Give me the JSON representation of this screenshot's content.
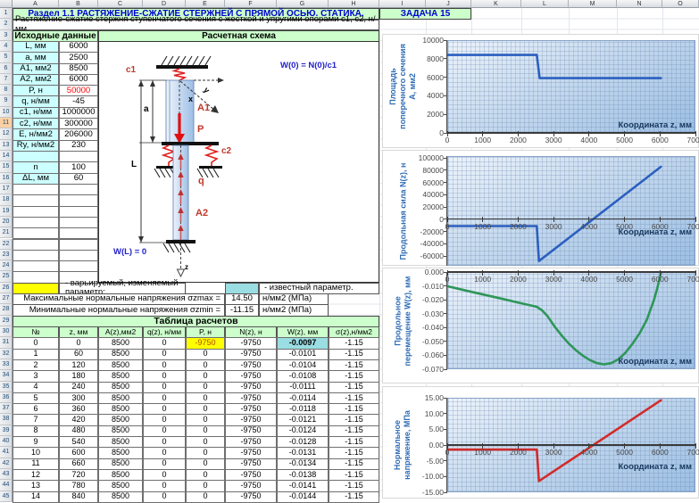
{
  "sheet": {
    "columns": [
      "A",
      "B",
      "C",
      "D",
      "E",
      "F",
      "G",
      "H",
      "I",
      "J",
      "K",
      "L",
      "M",
      "N",
      "O"
    ],
    "visible_rows": 45,
    "highlighted_row": 11
  },
  "title_row": {
    "section_title": "Раздел 1.1 РАСТЯЖЕНИЕ-СЖАТИЕ СТЕРЖНЕЙ С ПРЯМОЙ ОСЬЮ. СТАТИКА.",
    "task_label": "ЗАДАЧА 15"
  },
  "subtitle": "Растяжение-сжатие стержня ступенчатого сечения с жесткой и упругими опорами с1, с2, н/мм",
  "input_table": {
    "header": "Исходные данные",
    "rows": [
      {
        "label": "L, мм",
        "value": "6000"
      },
      {
        "label": "a, мм",
        "value": "2500"
      },
      {
        "label": "A1, мм2",
        "value": "8500"
      },
      {
        "label": "A2, мм2",
        "value": "6000"
      },
      {
        "label": "P, н",
        "value": "50000",
        "red": true
      },
      {
        "label": "q, н/мм",
        "value": "-45"
      },
      {
        "label": "c1, н/мм",
        "value": "1000000"
      },
      {
        "label": "c2, н/мм",
        "value": "300000"
      },
      {
        "label": "E, н/мм2",
        "value": "206000"
      },
      {
        "label": "Ry, н/мм2",
        "value": "230"
      },
      {
        "label": "",
        "value": ""
      },
      {
        "label": "n",
        "value": "100"
      },
      {
        "label": "ΔL, мм",
        "value": "60"
      }
    ]
  },
  "schema": {
    "header": "Расчетная схема",
    "labels": {
      "c1": "c1",
      "c2": "c2",
      "A1": "A1",
      "A2": "A2",
      "P": "P",
      "q": "q",
      "a": "a",
      "L": "L",
      "x": "x",
      "y": "y",
      "z": "z",
      "w0": "W(0) = N(0)/c1",
      "wl": "W(L) = 0"
    }
  },
  "legend": {
    "varied_text": "- варьируемый, изменяемый параметр;",
    "known_text": "- известный параметр."
  },
  "results": [
    {
      "text": "Максимальные нормальные напряжения σzmax =",
      "value": "14.50",
      "unit": "н/мм2 (МПа)"
    },
    {
      "text": "Минимальные нормальные напряжения σzmin =",
      "value": "-11.15",
      "unit": "н/мм2 (МПа)"
    }
  ],
  "calc_table": {
    "title": "Таблица расчетов",
    "headers": [
      "№",
      "z, мм",
      "A(z),мм2",
      "q(z), н/мм",
      "P, н",
      "N(z), н",
      "W(z), мм",
      "σ(z),н/мм2"
    ],
    "rows": [
      [
        "0",
        "0",
        "8500",
        "0",
        "-9750",
        "-9750",
        "-0.0097",
        "-1.15"
      ],
      [
        "1",
        "60",
        "8500",
        "0",
        "0",
        "-9750",
        "-0.0101",
        "-1.15"
      ],
      [
        "2",
        "120",
        "8500",
        "0",
        "0",
        "-9750",
        "-0.0104",
        "-1.15"
      ],
      [
        "3",
        "180",
        "8500",
        "0",
        "0",
        "-9750",
        "-0.0108",
        "-1.15"
      ],
      [
        "4",
        "240",
        "8500",
        "0",
        "0",
        "-9750",
        "-0.0111",
        "-1.15"
      ],
      [
        "5",
        "300",
        "8500",
        "0",
        "0",
        "-9750",
        "-0.0114",
        "-1.15"
      ],
      [
        "6",
        "360",
        "8500",
        "0",
        "0",
        "-9750",
        "-0.0118",
        "-1.15"
      ],
      [
        "7",
        "420",
        "8500",
        "0",
        "0",
        "-9750",
        "-0.0121",
        "-1.15"
      ],
      [
        "8",
        "480",
        "8500",
        "0",
        "0",
        "-9750",
        "-0.0124",
        "-1.15"
      ],
      [
        "9",
        "540",
        "8500",
        "0",
        "0",
        "-9750",
        "-0.0128",
        "-1.15"
      ],
      [
        "10",
        "600",
        "8500",
        "0",
        "0",
        "-9750",
        "-0.0131",
        "-1.15"
      ],
      [
        "11",
        "660",
        "8500",
        "0",
        "0",
        "-9750",
        "-0.0134",
        "-1.15"
      ],
      [
        "12",
        "720",
        "8500",
        "0",
        "0",
        "-9750",
        "-0.0138",
        "-1.15"
      ],
      [
        "13",
        "780",
        "8500",
        "0",
        "0",
        "-9750",
        "-0.0141",
        "-1.15"
      ],
      [
        "14",
        "840",
        "8500",
        "0",
        "0",
        "-9750",
        "-0.0144",
        "-1.15"
      ]
    ]
  },
  "chart_data": [
    {
      "type": "line",
      "name": "cross-section-area",
      "ylabel_lines": [
        "Площадь",
        "поперечного сечения",
        "A, мм2"
      ],
      "xlabel": "Координата z, мм",
      "xlim": [
        0,
        7000
      ],
      "ylim": [
        0,
        10000
      ],
      "xticks": [
        0,
        1000,
        2000,
        3000,
        4000,
        5000,
        6000,
        7000
      ],
      "yticks": [
        {
          "v": 10000,
          "label": "10000"
        },
        {
          "v": 8000,
          "label": "8000"
        },
        {
          "v": 6000,
          "label": "6000"
        },
        {
          "v": 4000,
          "label": "4000"
        },
        {
          "v": 2000,
          "label": "2000"
        },
        {
          "v": 0,
          "label": "0"
        }
      ],
      "points": [
        [
          0,
          8500
        ],
        [
          2500,
          8500
        ],
        [
          2580,
          6000
        ],
        [
          6000,
          6000
        ]
      ],
      "line_color": "#2b5fc0",
      "grid": true,
      "legend": "none"
    },
    {
      "type": "line",
      "name": "axial-force",
      "ylabel_lines": [
        "Продольная сила N(z), н"
      ],
      "xlabel": "Координата z, мм",
      "xlim": [
        0,
        7000
      ],
      "ylim": [
        -76000,
        103000
      ],
      "xticks": [
        0,
        1000,
        2000,
        3000,
        4000,
        5000,
        6000,
        7000
      ],
      "yticks": [
        {
          "v": 100000,
          "label": "100000"
        },
        {
          "v": 80000,
          "label": "80000"
        },
        {
          "v": 60000,
          "label": "60000"
        },
        {
          "v": 40000,
          "label": "40000"
        },
        {
          "v": 20000,
          "label": "20000"
        },
        {
          "v": 0,
          "label": "0"
        },
        {
          "v": -20000,
          "label": "-20000"
        },
        {
          "v": -40000,
          "label": "-40000"
        },
        {
          "v": -60000,
          "label": "-60000"
        }
      ],
      "points": [
        [
          0,
          -9750
        ],
        [
          2500,
          -9750
        ],
        [
          2560,
          -66900
        ],
        [
          6000,
          87000
        ]
      ],
      "line_color": "#2b5fc0",
      "grid": true,
      "legend": "none"
    },
    {
      "type": "line",
      "name": "axial-displacement",
      "ylabel_lines": [
        "Продольное",
        "перемещение W(z), мм"
      ],
      "xlabel": "Координата z, мм",
      "xlim": [
        0,
        7000
      ],
      "ylim": [
        -0.07,
        0
      ],
      "xticks": [
        0,
        1000,
        2000,
        3000,
        4000,
        5000,
        6000,
        7000
      ],
      "yticks": [
        {
          "v": 0,
          "label": "0.000"
        },
        {
          "v": -0.01,
          "label": "-0.010"
        },
        {
          "v": -0.02,
          "label": "-0.020"
        },
        {
          "v": -0.03,
          "label": "-0.030"
        },
        {
          "v": -0.04,
          "label": "-0.040"
        },
        {
          "v": -0.05,
          "label": "-0.050"
        },
        {
          "v": -0.06,
          "label": "-0.060"
        },
        {
          "v": -0.07,
          "label": "-0.070"
        }
      ],
      "points": [
        [
          0,
          -0.0097
        ],
        [
          500,
          -0.0127
        ],
        [
          1000,
          -0.0156
        ],
        [
          1500,
          -0.0185
        ],
        [
          2000,
          -0.0215
        ],
        [
          2500,
          -0.0244
        ],
        [
          2650,
          -0.027
        ],
        [
          2800,
          -0.031
        ],
        [
          3000,
          -0.0385
        ],
        [
          3200,
          -0.045
        ],
        [
          3400,
          -0.0508
        ],
        [
          3600,
          -0.0556
        ],
        [
          3800,
          -0.0596
        ],
        [
          4000,
          -0.0628
        ],
        [
          4200,
          -0.065
        ],
        [
          4400,
          -0.0658
        ],
        [
          4600,
          -0.065
        ],
        [
          4800,
          -0.0622
        ],
        [
          5000,
          -0.0575
        ],
        [
          5200,
          -0.051
        ],
        [
          5400,
          -0.0435
        ],
        [
          5600,
          -0.034
        ],
        [
          5800,
          -0.02
        ],
        [
          5900,
          -0.011
        ],
        [
          6000,
          0
        ]
      ],
      "line_color": "#2e9658",
      "grid": true,
      "legend": "none"
    },
    {
      "type": "line",
      "name": "normal-stress",
      "ylabel_lines": [
        "Нормальное",
        "напряжение, МПа"
      ],
      "xlabel": "Координата z, мм",
      "xlim": [
        0,
        7000
      ],
      "ylim": [
        -15,
        15
      ],
      "xticks": [
        0,
        1000,
        2000,
        3000,
        4000,
        5000,
        6000,
        7000
      ],
      "yticks": [
        {
          "v": 15,
          "label": "15.00"
        },
        {
          "v": 10,
          "label": "10.00"
        },
        {
          "v": 5,
          "label": "5.00"
        },
        {
          "v": 0,
          "label": "0.00"
        },
        {
          "v": -5,
          "label": "-5.00"
        },
        {
          "v": -10,
          "label": "-10.00"
        },
        {
          "v": -15,
          "label": "-15.00"
        }
      ],
      "points": [
        [
          0,
          -1.15
        ],
        [
          2500,
          -1.15
        ],
        [
          2560,
          -11.15
        ],
        [
          6000,
          14.5
        ]
      ],
      "line_color": "#d22b2b",
      "grid": true,
      "legend": "none"
    }
  ]
}
